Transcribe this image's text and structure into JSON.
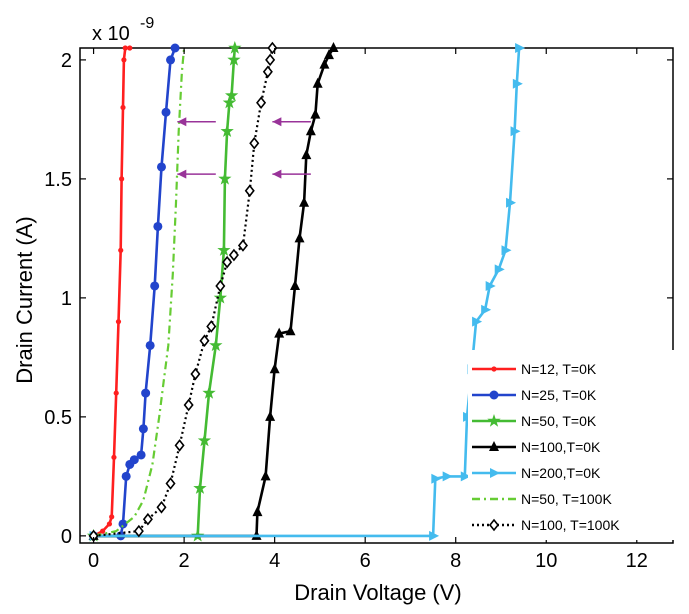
{
  "chart_data": {
    "type": "line",
    "title": "",
    "xlabel": "Drain Voltage (V)",
    "ylabel": "Drain Current (A)",
    "y_multiplier_label": "x 10",
    "y_multiplier_exponent": "-9",
    "xlim": [
      -0.3,
      12.8
    ],
    "ylim": [
      -0.03,
      2.05
    ],
    "x_ticks": [
      0,
      2,
      4,
      6,
      8,
      10,
      12
    ],
    "x_tick_labels": [
      "0",
      "2",
      "4",
      "6",
      "8",
      "10",
      "12"
    ],
    "y_ticks": [
      0,
      0.5,
      1,
      1.5,
      2
    ],
    "y_tick_labels": [
      "0",
      "0.5",
      "1",
      "1.5",
      "2"
    ],
    "grid": false,
    "legend_position": "bottom-right",
    "series": [
      {
        "name": "N=12, T=0K",
        "color": "#ff1f1f",
        "line_style": "solid",
        "marker": "dot",
        "points": [
          [
            0,
            0
          ],
          [
            0.2,
            0.02
          ],
          [
            0.35,
            0.05
          ],
          [
            0.4,
            0.08
          ],
          [
            0.45,
            0.33
          ],
          [
            0.5,
            0.6
          ],
          [
            0.55,
            0.9
          ],
          [
            0.6,
            1.2
          ],
          [
            0.62,
            1.5
          ],
          [
            0.65,
            1.8
          ],
          [
            0.67,
            2.0
          ],
          [
            0.7,
            2.05
          ],
          [
            0.8,
            2.05
          ]
        ]
      },
      {
        "name": "N=25, T=0K",
        "color": "#2244cc",
        "line_style": "solid",
        "marker": "circle",
        "points": [
          [
            0,
            0
          ],
          [
            0.6,
            0
          ],
          [
            0.65,
            0.05
          ],
          [
            0.72,
            0.25
          ],
          [
            0.8,
            0.3
          ],
          [
            0.9,
            0.32
          ],
          [
            1.05,
            0.34
          ],
          [
            1.1,
            0.45
          ],
          [
            1.15,
            0.6
          ],
          [
            1.25,
            0.8
          ],
          [
            1.35,
            1.05
          ],
          [
            1.42,
            1.3
          ],
          [
            1.5,
            1.55
          ],
          [
            1.6,
            1.78
          ],
          [
            1.7,
            2.0
          ],
          [
            1.8,
            2.05
          ]
        ]
      },
      {
        "name": "N=50, T=0K",
        "color": "#44bb33",
        "line_style": "solid",
        "marker": "star",
        "points": [
          [
            0,
            0
          ],
          [
            2.3,
            0
          ],
          [
            2.35,
            0.2
          ],
          [
            2.45,
            0.4
          ],
          [
            2.55,
            0.6
          ],
          [
            2.7,
            0.8
          ],
          [
            2.8,
            1.0
          ],
          [
            2.88,
            1.2
          ],
          [
            2.9,
            1.5
          ],
          [
            2.95,
            1.7
          ],
          [
            3.0,
            1.82
          ],
          [
            3.05,
            1.85
          ],
          [
            3.1,
            2.0
          ],
          [
            3.12,
            2.05
          ]
        ]
      },
      {
        "name": "N=100,T=0K",
        "color": "#000000",
        "line_style": "solid",
        "marker": "triangle-up",
        "points": [
          [
            0,
            0
          ],
          [
            3.6,
            0
          ],
          [
            3.62,
            0.1
          ],
          [
            3.8,
            0.25
          ],
          [
            3.9,
            0.5
          ],
          [
            4.0,
            0.7
          ],
          [
            4.1,
            0.85
          ],
          [
            4.35,
            0.86
          ],
          [
            4.45,
            1.05
          ],
          [
            4.55,
            1.25
          ],
          [
            4.65,
            1.4
          ],
          [
            4.7,
            1.6
          ],
          [
            4.8,
            1.7
          ],
          [
            4.9,
            1.77
          ],
          [
            4.95,
            1.9
          ],
          [
            5.1,
            1.98
          ],
          [
            5.2,
            2.02
          ],
          [
            5.3,
            2.05
          ]
        ]
      },
      {
        "name": "N=200,T=0K",
        "color": "#44bbee",
        "line_style": "solid",
        "marker": "triangle-right",
        "points": [
          [
            0,
            0
          ],
          [
            7.5,
            0
          ],
          [
            7.55,
            0.24
          ],
          [
            7.8,
            0.25
          ],
          [
            8.2,
            0.25
          ],
          [
            8.25,
            0.5
          ],
          [
            8.35,
            0.7
          ],
          [
            8.45,
            0.9
          ],
          [
            8.65,
            0.95
          ],
          [
            8.75,
            1.05
          ],
          [
            8.95,
            1.12
          ],
          [
            9.1,
            1.2
          ],
          [
            9.2,
            1.4
          ],
          [
            9.3,
            1.7
          ],
          [
            9.35,
            1.9
          ],
          [
            9.4,
            2.05
          ]
        ]
      },
      {
        "name": "N=50, T=100K",
        "color": "#66cc33",
        "line_style": "dash-dot",
        "marker": "none",
        "points": [
          [
            0,
            0
          ],
          [
            0.5,
            0.02
          ],
          [
            0.9,
            0.08
          ],
          [
            1.1,
            0.15
          ],
          [
            1.3,
            0.3
          ],
          [
            1.45,
            0.5
          ],
          [
            1.55,
            0.65
          ],
          [
            1.65,
            0.8
          ],
          [
            1.75,
            1.1
          ],
          [
            1.82,
            1.4
          ],
          [
            1.88,
            1.7
          ],
          [
            1.95,
            1.95
          ],
          [
            2.0,
            2.05
          ]
        ]
      },
      {
        "name": "N=100, T=100K",
        "color": "#000000",
        "line_style": "dotted",
        "marker": "diamond",
        "points": [
          [
            0,
            0
          ],
          [
            1.0,
            0.02
          ],
          [
            1.2,
            0.07
          ],
          [
            1.5,
            0.12
          ],
          [
            1.7,
            0.22
          ],
          [
            1.9,
            0.38
          ],
          [
            2.1,
            0.55
          ],
          [
            2.25,
            0.68
          ],
          [
            2.45,
            0.82
          ],
          [
            2.6,
            0.88
          ],
          [
            2.8,
            1.05
          ],
          [
            2.95,
            1.15
          ],
          [
            3.1,
            1.18
          ],
          [
            3.3,
            1.22
          ],
          [
            3.45,
            1.45
          ],
          [
            3.55,
            1.65
          ],
          [
            3.7,
            1.82
          ],
          [
            3.85,
            1.95
          ],
          [
            3.9,
            2.0
          ],
          [
            3.95,
            2.05
          ]
        ]
      }
    ],
    "arrows": [
      {
        "color": "#993399",
        "from": [
          1.85,
          1.74
        ],
        "to": [
          2.7,
          1.74
        ]
      },
      {
        "color": "#993399",
        "from": [
          1.85,
          1.52
        ],
        "to": [
          2.7,
          1.52
        ]
      },
      {
        "color": "#993399",
        "from": [
          3.95,
          1.74
        ],
        "to": [
          4.8,
          1.74
        ]
      },
      {
        "color": "#993399",
        "from": [
          3.95,
          1.52
        ],
        "to": [
          4.8,
          1.52
        ]
      }
    ]
  }
}
